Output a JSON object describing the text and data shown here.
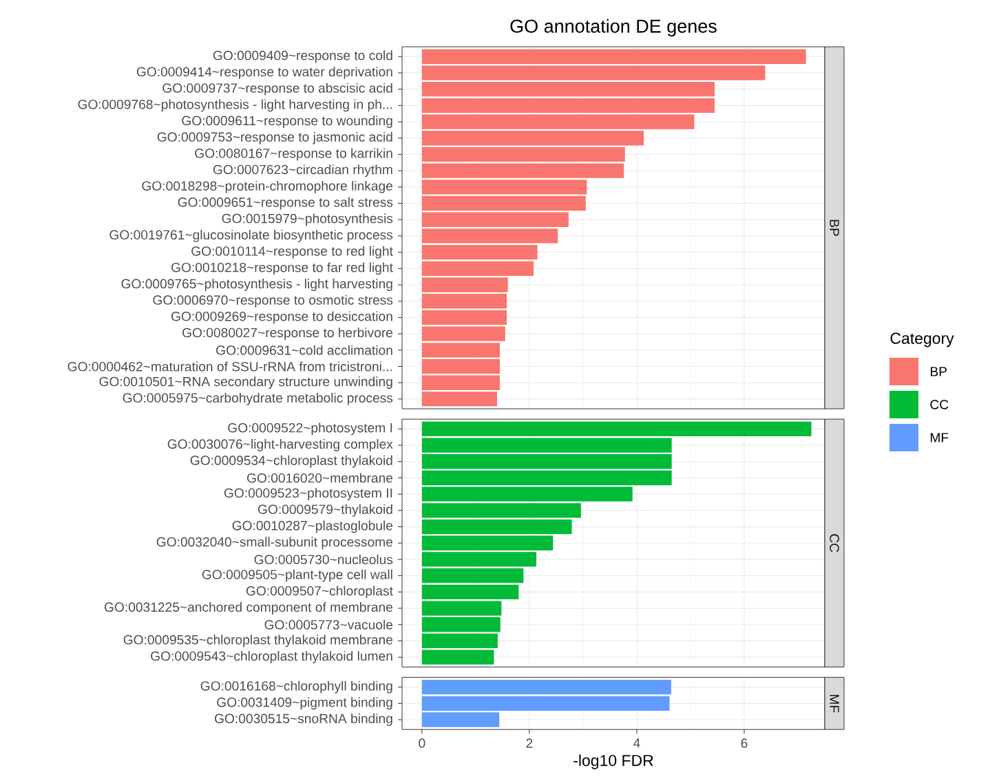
{
  "chart_data": [
    {
      "type": "bar",
      "orientation": "horizontal",
      "title": "GO annotation DE genes",
      "legend_title": "Category",
      "legend": "right",
      "grid": true,
      "tick_labels": "y",
      "xlim": [
        -0.37,
        7.5
      ],
      "xticks": [
        0,
        2,
        4,
        6
      ],
      "categories": [
        "GO:0009409~response to cold",
        "GO:0009414~response to water deprivation",
        "GO:0009737~response to abscisic acid",
        "GO:0009768~photosynthesis - light harvesting in ph...",
        "GO:0009611~response to wounding",
        "GO:0009753~response to jasmonic acid",
        "GO:0080167~response to karrikin",
        "GO:0007623~circadian rhythm",
        "GO:0018298~protein-chromophore linkage",
        "GO:0009651~response to salt stress",
        "GO:0015979~photosynthesis",
        "GO:0019761~glucosinolate biosynthetic process",
        "GO:0010114~response to red light",
        "GO:0010218~response to far red light",
        "GO:0009765~photosynthesis - light harvesting",
        "GO:0006970~response to osmotic stress",
        "GO:0009269~response to desiccation",
        "GO:0080027~response to herbivore",
        "GO:0009631~cold acclimation",
        "GO:0000462~maturation of SSU-rRNA from tricistroni...",
        "GO:0010501~RNA secondary structure unwinding",
        "GO:0005975~carbohydrate metabolic process"
      ],
      "series": [
        {
          "name": "BP",
          "color": "#f8766d",
          "values": [
            7.15,
            6.39,
            5.45,
            5.45,
            5.07,
            4.13,
            3.78,
            3.76,
            3.07,
            3.05,
            2.73,
            2.53,
            2.15,
            2.08,
            1.6,
            1.58,
            1.58,
            1.55,
            1.45,
            1.45,
            1.45,
            1.4
          ]
        }
      ]
    },
    {
      "type": "bar",
      "orientation": "horizontal",
      "legend": "right",
      "grid": true,
      "tick_labels": "y",
      "xlim": [
        -0.37,
        7.5
      ],
      "xticks": [
        0,
        2,
        4,
        6
      ],
      "categories": [
        "GO:0009522~photosystem I",
        "GO:0030076~light-harvesting complex",
        "GO:0009534~chloroplast thylakoid",
        "GO:0016020~membrane",
        "GO:0009523~photosystem II",
        "GO:0009579~thylakoid",
        "GO:0010287~plastoglobule",
        "GO:0032040~small-subunit processome",
        "GO:0005730~nucleolus",
        "GO:0009505~plant-type cell wall",
        "GO:0009507~chloroplast",
        "GO:0031225~anchored component of membrane",
        "GO:0005773~vacuole",
        "GO:0009535~chloroplast thylakoid membrane",
        "GO:0009543~chloroplast thylakoid lumen"
      ],
      "series": [
        {
          "name": "CC",
          "color": "#00ba38",
          "values": [
            7.25,
            4.65,
            4.65,
            4.65,
            3.92,
            2.96,
            2.79,
            2.44,
            2.13,
            1.89,
            1.8,
            1.48,
            1.46,
            1.41,
            1.34
          ]
        }
      ]
    },
    {
      "type": "bar",
      "orientation": "horizontal",
      "legend": "right",
      "grid": true,
      "xlabel": "-log10 FDR",
      "xlim": [
        -0.37,
        7.5
      ],
      "xticks": [
        0,
        2,
        4,
        6
      ],
      "categories": [
        "GO:0016168~chlorophyll binding",
        "GO:0031409~pigment binding",
        "GO:0030515~snoRNA binding"
      ],
      "series": [
        {
          "name": "MF",
          "color": "#619cff",
          "values": [
            4.64,
            4.61,
            1.44
          ]
        }
      ]
    }
  ]
}
